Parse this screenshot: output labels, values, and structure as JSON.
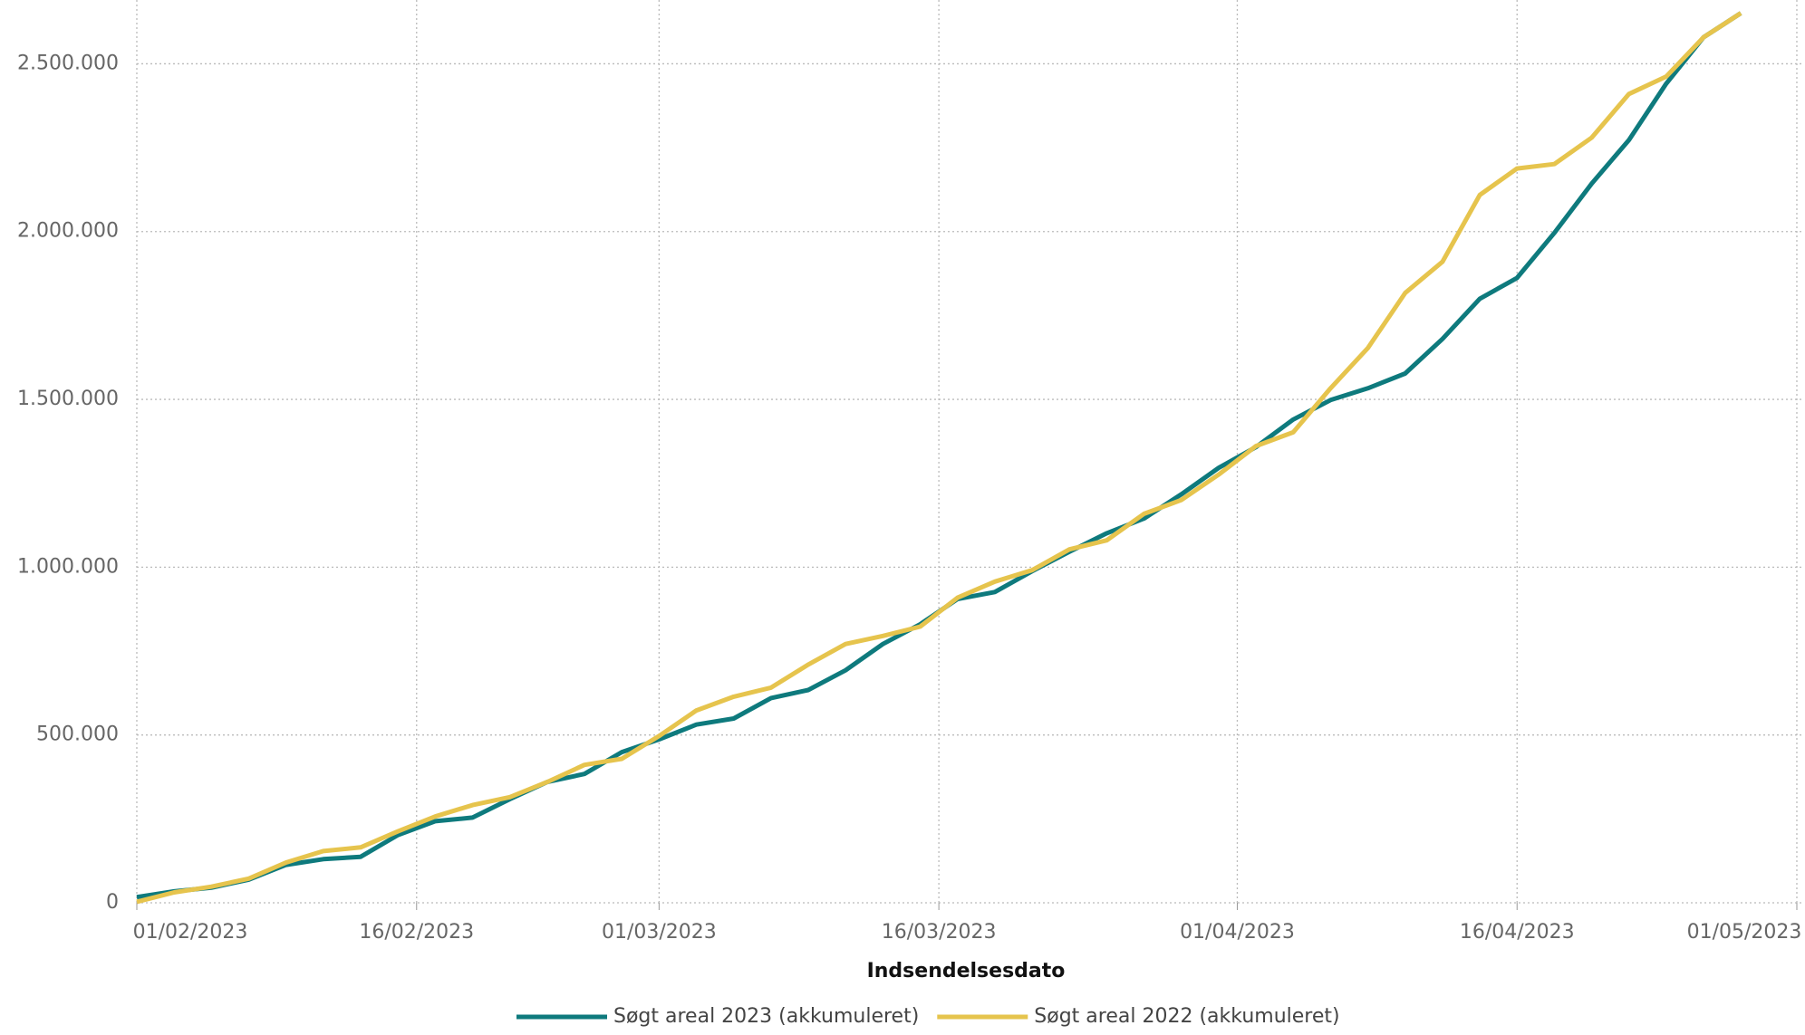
{
  "chart_data": {
    "type": "line",
    "x_label": "Indsendelsesdato",
    "x": [
      "2023-02-01",
      "2023-02-03",
      "2023-02-05",
      "2023-02-07",
      "2023-02-09",
      "2023-02-11",
      "2023-02-13",
      "2023-02-15",
      "2023-02-17",
      "2023-02-19",
      "2023-02-21",
      "2023-02-23",
      "2023-02-25",
      "2023-02-27",
      "2023-03-01",
      "2023-03-03",
      "2023-03-05",
      "2023-03-07",
      "2023-03-09",
      "2023-03-11",
      "2023-03-13",
      "2023-03-15",
      "2023-03-17",
      "2023-03-19",
      "2023-03-21",
      "2023-03-23",
      "2023-03-25",
      "2023-03-27",
      "2023-03-29",
      "2023-03-31",
      "2023-04-02",
      "2023-04-04",
      "2023-04-06",
      "2023-04-08",
      "2023-04-10",
      "2023-04-12",
      "2023-04-14",
      "2023-04-16",
      "2023-04-18",
      "2023-04-20",
      "2023-04-22",
      "2023-04-24",
      "2023-04-26",
      "2023-04-28"
    ],
    "series": [
      {
        "name": "Søgt areal 2023 (akkumuleret)",
        "color": "#0e7a7d",
        "values": [
          17000,
          34000,
          45000,
          69000,
          113000,
          130000,
          137000,
          202000,
          243000,
          254000,
          309000,
          360000,
          384000,
          449000,
          487000,
          531000,
          549000,
          610000,
          634000,
          693000,
          771000,
          830000,
          905000,
          926000,
          988000,
          1046000,
          1101000,
          1145000,
          1217000,
          1296000,
          1358000,
          1440000,
          1498000,
          1533000,
          1577000,
          1680000,
          1800000,
          1862000,
          1996000,
          2143000,
          2273000,
          2441000,
          2579000,
          2651000
        ]
      },
      {
        "name": "Søgt areal 2022 (akkumuleret)",
        "color": "#e6c44d",
        "values": [
          3000,
          31000,
          48000,
          72000,
          120000,
          154000,
          165000,
          213000,
          257000,
          291000,
          315000,
          360000,
          411000,
          429000,
          497000,
          573000,
          614000,
          641000,
          710000,
          771000,
          795000,
          823000,
          909000,
          957000,
          991000,
          1053000,
          1080000,
          1159000,
          1200000,
          1276000,
          1361000,
          1402000,
          1533000,
          1653000,
          1817000,
          1910000,
          2109000,
          2188000,
          2201000,
          2280000,
          2410000,
          2462000,
          2579000,
          2651000
        ]
      }
    ],
    "xlim": [
      "2023-02-01",
      "2023-05-01"
    ],
    "xticks": [
      {
        "value": "2023-02-01",
        "label": "01/02/2023"
      },
      {
        "value": "2023-02-16",
        "label": "16/02/2023"
      },
      {
        "value": "2023-03-01",
        "label": "01/03/2023"
      },
      {
        "value": "2023-03-16",
        "label": "16/03/2023"
      },
      {
        "value": "2023-04-01",
        "label": "01/04/2023"
      },
      {
        "value": "2023-04-16",
        "label": "16/04/2023"
      },
      {
        "value": "2023-05-01",
        "label": "01/05/2023"
      }
    ],
    "ylim": [
      0,
      2690000
    ],
    "yticks": [
      0,
      {
        "value": 500000,
        "label": "500.000"
      },
      {
        "value": 1000000,
        "label": "1.000.000"
      },
      {
        "value": 1500000,
        "label": "1.500.000"
      },
      {
        "value": 2000000,
        "label": "2.000.000"
      },
      {
        "value": 2500000,
        "label": "2.500.000"
      }
    ],
    "grid": true
  }
}
